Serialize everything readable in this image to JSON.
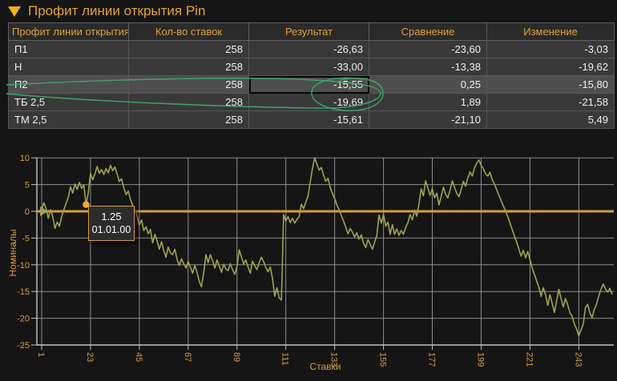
{
  "window": {
    "title": "Профит линии открытия Pin"
  },
  "table": {
    "columns": [
      {
        "label": "Профит линии открытия"
      },
      {
        "label": "Кол-во ставок"
      },
      {
        "label": "Результат"
      },
      {
        "label": "Сравнение"
      },
      {
        "label": "Изменение"
      }
    ],
    "rows": [
      {
        "cells": [
          "П1",
          "258",
          "-26,63",
          "-23,60",
          "-3,03"
        ]
      },
      {
        "cells": [
          "Н",
          "258",
          "-33,00",
          "-13,38",
          "-19,62"
        ]
      },
      {
        "cells": [
          "П2",
          "258",
          "-15,55",
          "0,25",
          "-15,80"
        ],
        "selected": true
      },
      {
        "cells": [
          "ТБ 2,5",
          "258",
          "-19,69",
          "1,89",
          "-21,58"
        ]
      },
      {
        "cells": [
          "ТМ 2,5",
          "258",
          "-15,61",
          "-21,10",
          "5,49"
        ]
      }
    ]
  },
  "tooltip": {
    "value": "1.25",
    "date": "01.01.00"
  },
  "annotation": {
    "color": "#3EA565"
  },
  "chart_data": {
    "type": "line",
    "title": "",
    "xlabel": "Ставки",
    "ylabel": "Номиналы",
    "xlim": [
      1,
      258
    ],
    "ylim": [
      -25,
      10
    ],
    "grid": true,
    "legend": false,
    "x_ticks": [
      1,
      23,
      45,
      67,
      89,
      111,
      133,
      155,
      177,
      199,
      221,
      243
    ],
    "y_ticks": [
      10,
      5,
      0,
      -5,
      -10,
      -15,
      -20,
      -25
    ],
    "zero_line": 0,
    "marker": {
      "x": 21,
      "y": 1.25
    },
    "colors": {
      "series": "#9EA351",
      "zero": "#D89A3B",
      "grid": "#8E8E8E",
      "axis": "#C2C2C2",
      "label": "#D79E3C",
      "marker": "#F2A93B"
    },
    "series": [
      {
        "name": "П2",
        "points": [
          [
            1,
            0.2
          ],
          [
            2,
            1.6
          ],
          [
            3,
            0.5
          ],
          [
            4,
            -1.3
          ],
          [
            5,
            0.3
          ],
          [
            6,
            -1.0
          ],
          [
            7,
            -3.2
          ],
          [
            8,
            -2.0
          ],
          [
            9,
            -2.8
          ],
          [
            10,
            -1.0
          ],
          [
            11,
            0.3
          ],
          [
            12,
            1.5
          ],
          [
            13,
            2.6
          ],
          [
            14,
            4.6
          ],
          [
            15,
            3.4
          ],
          [
            16,
            5.1
          ],
          [
            17,
            4.1
          ],
          [
            18,
            5.4
          ],
          [
            19,
            4.3
          ],
          [
            20,
            4.9
          ],
          [
            21,
            1.25
          ],
          [
            22,
            3.5
          ],
          [
            23,
            7.1
          ],
          [
            24,
            5.9
          ],
          [
            25,
            7.0
          ],
          [
            26,
            8.4
          ],
          [
            27,
            7.1
          ],
          [
            28,
            7.8
          ],
          [
            29,
            6.9
          ],
          [
            30,
            8.0
          ],
          [
            31,
            7.2
          ],
          [
            32,
            8.6
          ],
          [
            33,
            7.6
          ],
          [
            34,
            8.3
          ],
          [
            35,
            7.0
          ],
          [
            36,
            5.6
          ],
          [
            37,
            6.1
          ],
          [
            38,
            4.4
          ],
          [
            39,
            3.1
          ],
          [
            40,
            3.8
          ],
          [
            41,
            2.2
          ],
          [
            42,
            1.1
          ],
          [
            43,
            0.3
          ],
          [
            44,
            -0.9
          ],
          [
            45,
            -2.6
          ],
          [
            46,
            -1.6
          ],
          [
            47,
            -3.6
          ],
          [
            48,
            -2.9
          ],
          [
            49,
            -4.2
          ],
          [
            50,
            -3.4
          ],
          [
            51,
            -5.9
          ],
          [
            52,
            -4.3
          ],
          [
            53,
            -5.5
          ],
          [
            54,
            -7.1
          ],
          [
            55,
            -5.7
          ],
          [
            56,
            -7.3
          ],
          [
            57,
            -8.6
          ],
          [
            58,
            -6.7
          ],
          [
            59,
            -7.8
          ],
          [
            60,
            -8.1
          ],
          [
            61,
            -7.1
          ],
          [
            62,
            -9.0
          ],
          [
            63,
            -10.1
          ],
          [
            64,
            -8.9
          ],
          [
            65,
            -9.8
          ],
          [
            66,
            -10.6
          ],
          [
            67,
            -9.4
          ],
          [
            68,
            -10.4
          ],
          [
            69,
            -11.6
          ],
          [
            70,
            -10.1
          ],
          [
            71,
            -11.4
          ],
          [
            72,
            -13.1
          ],
          [
            73,
            -14.1
          ],
          [
            74,
            -11.5
          ],
          [
            75,
            -8.1
          ],
          [
            76,
            -9.6
          ],
          [
            77,
            -8.1
          ],
          [
            78,
            -9.2
          ],
          [
            79,
            -10.6
          ],
          [
            80,
            -9.1
          ],
          [
            81,
            -10.2
          ],
          [
            82,
            -11.4
          ],
          [
            83,
            -9.9
          ],
          [
            84,
            -10.8
          ],
          [
            85,
            -11.1
          ],
          [
            86,
            -9.8
          ],
          [
            87,
            -10.9
          ],
          [
            88,
            -11.8
          ],
          [
            89,
            -10.3
          ],
          [
            90,
            -7.2
          ],
          [
            91,
            -8.5
          ],
          [
            92,
            -9.8
          ],
          [
            93,
            -9.1
          ],
          [
            94,
            -10.4
          ],
          [
            95,
            -11.6
          ],
          [
            96,
            -9.3
          ],
          [
            97,
            -10.2
          ],
          [
            98,
            -10.9
          ],
          [
            99,
            -9.6
          ],
          [
            100,
            -8.6
          ],
          [
            101,
            -9.4
          ],
          [
            102,
            -10.5
          ],
          [
            103,
            -11.3
          ],
          [
            104,
            -10.4
          ],
          [
            105,
            -12.6
          ],
          [
            106,
            -15.9
          ],
          [
            107,
            -14.3
          ],
          [
            108,
            -16.2
          ],
          [
            109,
            -16.6
          ],
          [
            110,
            -0.6
          ],
          [
            111,
            -1.8
          ],
          [
            112,
            -1.0
          ],
          [
            113,
            -2.1
          ],
          [
            114,
            -1.3
          ],
          [
            115,
            -2.2
          ],
          [
            116,
            -1.5
          ],
          [
            117,
            -1.0
          ],
          [
            118,
            1.3
          ],
          [
            119,
            0.5
          ],
          [
            120,
            1.7
          ],
          [
            121,
            2.8
          ],
          [
            122,
            5.5
          ],
          [
            123,
            8.0
          ],
          [
            124,
            10.0
          ],
          [
            125,
            8.8
          ],
          [
            126,
            7.7
          ],
          [
            127,
            8.2
          ],
          [
            128,
            6.8
          ],
          [
            129,
            5.6
          ],
          [
            130,
            6.2
          ],
          [
            131,
            4.5
          ],
          [
            132,
            3.3
          ],
          [
            133,
            2.4
          ],
          [
            134,
            1.2
          ],
          [
            135,
            0.3
          ],
          [
            136,
            -0.8
          ],
          [
            137,
            -1.8
          ],
          [
            138,
            -3.0
          ],
          [
            139,
            -4.2
          ],
          [
            140,
            -3.2
          ],
          [
            141,
            -3.9
          ],
          [
            142,
            -4.8
          ],
          [
            143,
            -4.0
          ],
          [
            144,
            -5.2
          ],
          [
            145,
            -4.4
          ],
          [
            146,
            -5.9
          ],
          [
            147,
            -6.8
          ],
          [
            148,
            -5.3
          ],
          [
            149,
            -6.2
          ],
          [
            150,
            -7.1
          ],
          [
            151,
            -5.8
          ],
          [
            152,
            -4.5
          ],
          [
            153,
            -0.7
          ],
          [
            154,
            -2.2
          ],
          [
            155,
            -0.6
          ],
          [
            156,
            -2.8
          ],
          [
            157,
            -2.0
          ],
          [
            158,
            -4.3
          ],
          [
            159,
            -2.5
          ],
          [
            160,
            -4.3
          ],
          [
            161,
            -3.3
          ],
          [
            162,
            -4.5
          ],
          [
            163,
            -3.6
          ],
          [
            164,
            -4.3
          ],
          [
            165,
            -3.0
          ],
          [
            166,
            -2.1
          ],
          [
            167,
            -0.6
          ],
          [
            168,
            -1.6
          ],
          [
            169,
            0.2
          ],
          [
            170,
            -0.9
          ],
          [
            171,
            1.4
          ],
          [
            172,
            4.2
          ],
          [
            173,
            2.9
          ],
          [
            174,
            5.7
          ],
          [
            175,
            4.3
          ],
          [
            176,
            3.0
          ],
          [
            177,
            4.2
          ],
          [
            178,
            2.5
          ],
          [
            179,
            3.4
          ],
          [
            180,
            1.2
          ],
          [
            181,
            2.8
          ],
          [
            182,
            4.5
          ],
          [
            183,
            3.2
          ],
          [
            184,
            2.5
          ],
          [
            185,
            4.0
          ],
          [
            186,
            5.7
          ],
          [
            187,
            4.5
          ],
          [
            188,
            3.4
          ],
          [
            189,
            2.7
          ],
          [
            190,
            4.1
          ],
          [
            191,
            5.6
          ],
          [
            192,
            4.7
          ],
          [
            193,
            6.2
          ],
          [
            194,
            7.4
          ],
          [
            195,
            6.6
          ],
          [
            196,
            8.1
          ],
          [
            197,
            9.0
          ],
          [
            198,
            9.6
          ],
          [
            199,
            8.6
          ],
          [
            200,
            8.0
          ],
          [
            201,
            7.0
          ],
          [
            202,
            6.6
          ],
          [
            203,
            7.3
          ],
          [
            204,
            5.9
          ],
          [
            205,
            5.1
          ],
          [
            206,
            4.0
          ],
          [
            207,
            3.0
          ],
          [
            208,
            2.0
          ],
          [
            209,
            1.0
          ],
          [
            210,
            0.0
          ],
          [
            211,
            -1.0
          ],
          [
            212,
            -2.2
          ],
          [
            213,
            -3.4
          ],
          [
            214,
            -4.6
          ],
          [
            215,
            -5.8
          ],
          [
            216,
            -7.0
          ],
          [
            217,
            -8.4
          ],
          [
            218,
            -7.3
          ],
          [
            219,
            -8.7
          ],
          [
            220,
            -7.5
          ],
          [
            221,
            -9.0
          ],
          [
            222,
            -10.6
          ],
          [
            223,
            -11.8
          ],
          [
            224,
            -13.0
          ],
          [
            225,
            -14.2
          ],
          [
            226,
            -15.9
          ],
          [
            227,
            -14.3
          ],
          [
            228,
            -15.6
          ],
          [
            229,
            -17.6
          ],
          [
            230,
            -15.6
          ],
          [
            231,
            -17.2
          ],
          [
            232,
            -18.9
          ],
          [
            233,
            -16.8
          ],
          [
            234,
            -14.6
          ],
          [
            235,
            -16.3
          ],
          [
            236,
            -17.9
          ],
          [
            237,
            -16.3
          ],
          [
            238,
            -17.5
          ],
          [
            239,
            -19.0
          ],
          [
            240,
            -19.6
          ],
          [
            241,
            -21.1
          ],
          [
            242,
            -22.0
          ],
          [
            243,
            -23.3
          ],
          [
            244,
            -22.2
          ],
          [
            245,
            -21.1
          ],
          [
            246,
            -18.0
          ],
          [
            247,
            -17.4
          ],
          [
            248,
            -19.0
          ],
          [
            249,
            -19.9
          ],
          [
            250,
            -18.3
          ],
          [
            251,
            -17.4
          ],
          [
            252,
            -15.8
          ],
          [
            253,
            -14.6
          ],
          [
            254,
            -13.6
          ],
          [
            255,
            -14.5
          ],
          [
            256,
            -15.1
          ],
          [
            257,
            -14.4
          ],
          [
            258,
            -15.55
          ]
        ]
      }
    ]
  }
}
